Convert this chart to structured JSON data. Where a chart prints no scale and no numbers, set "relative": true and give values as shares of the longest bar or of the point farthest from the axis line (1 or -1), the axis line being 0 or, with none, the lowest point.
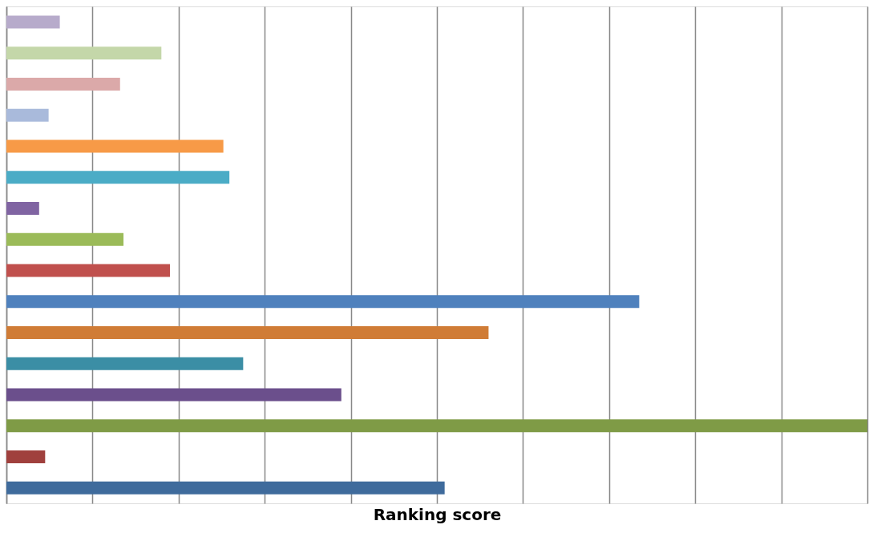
{
  "chart_data": {
    "type": "bar",
    "orientation": "horizontal",
    "relative": true,
    "xlabel": "Ranking score",
    "grid": "x",
    "tick_labels": false,
    "categories": [
      null,
      null,
      null,
      null,
      null,
      null,
      null,
      null,
      null,
      null,
      null,
      null,
      null,
      null,
      null,
      null
    ],
    "values": [
      0.062,
      0.18,
      0.132,
      0.049,
      0.252,
      0.259,
      0.038,
      0.136,
      0.19,
      0.735,
      0.56,
      0.275,
      0.389,
      1.0,
      0.045,
      0.509
    ],
    "colors": [
      "#b7abcb",
      "#c4d7a9",
      "#dba9a9",
      "#a9badb",
      "#f79a47",
      "#4bacc6",
      "#8064a2",
      "#9bbb59",
      "#c0504d",
      "#4f81bd",
      "#d07c36",
      "#3b8ea5",
      "#6b4f8c",
      "#7f9b46",
      "#a0403d",
      "#3f6b9c"
    ]
  }
}
